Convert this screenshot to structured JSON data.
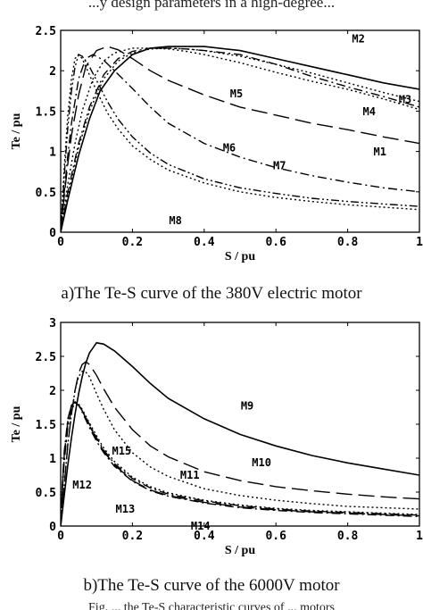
{
  "header_text": "...y design parameters in a high-degree...",
  "footer_text": "Fig. ... the Te-S characteristic curves of ... motors",
  "chart_data": [
    {
      "type": "line",
      "caption": "a)The Te-S curve of the 380V electric motor",
      "xlabel": "S / pu",
      "ylabel": "Te / pu",
      "xlim": [
        0,
        1
      ],
      "ylim": [
        0,
        2.5
      ],
      "xticks": [
        "0",
        "0.2",
        "0.4",
        "0.6",
        "0.8",
        "1"
      ],
      "yticks": [
        "0",
        "0.5",
        "1",
        "1.5",
        "2",
        "2.5"
      ],
      "grid": false,
      "series": [
        {
          "name": "M1",
          "dash": "long",
          "x": [
            0,
            0.01,
            0.02,
            0.03,
            0.05,
            0.07,
            0.1,
            0.13,
            0.16,
            0.2,
            0.25,
            0.3,
            0.4,
            0.5,
            0.6,
            0.7,
            0.8,
            0.9,
            1.0
          ],
          "y": [
            0,
            0.45,
            0.85,
            1.2,
            1.7,
            2.05,
            2.25,
            2.3,
            2.26,
            2.15,
            2.0,
            1.88,
            1.7,
            1.55,
            1.45,
            1.35,
            1.27,
            1.18,
            1.1
          ]
        },
        {
          "name": "M2",
          "dash": "solid",
          "x": [
            0,
            0.02,
            0.05,
            0.08,
            0.11,
            0.15,
            0.2,
            0.25,
            0.3,
            0.35,
            0.4,
            0.5,
            0.6,
            0.7,
            0.8,
            0.9,
            1.0
          ],
          "y": [
            0,
            0.4,
            0.95,
            1.4,
            1.75,
            2.0,
            2.2,
            2.28,
            2.3,
            2.3,
            2.3,
            2.25,
            2.15,
            2.05,
            1.95,
            1.85,
            1.77
          ]
        },
        {
          "name": "M3",
          "dash": "dot",
          "x": [
            0,
            0.02,
            0.05,
            0.08,
            0.12,
            0.16,
            0.2,
            0.25,
            0.3,
            0.35,
            0.4,
            0.5,
            0.6,
            0.7,
            0.8,
            0.9,
            1.0
          ],
          "y": [
            0,
            0.45,
            1.05,
            1.5,
            1.9,
            2.12,
            2.22,
            2.27,
            2.28,
            2.27,
            2.25,
            2.18,
            2.08,
            1.97,
            1.85,
            1.73,
            1.62
          ]
        },
        {
          "name": "M4",
          "dash": "dashdot",
          "x": [
            0,
            0.02,
            0.05,
            0.08,
            0.12,
            0.16,
            0.2,
            0.25,
            0.3,
            0.35,
            0.4,
            0.5,
            0.6,
            0.7,
            0.8,
            0.9,
            1.0
          ],
          "y": [
            0,
            0.5,
            1.1,
            1.55,
            1.95,
            2.15,
            2.24,
            2.28,
            2.28,
            2.27,
            2.25,
            2.2,
            2.08,
            1.93,
            1.8,
            1.68,
            1.55
          ]
        },
        {
          "name": "M5",
          "dash": "dot",
          "x": [
            0,
            0.02,
            0.04,
            0.06,
            0.09,
            0.12,
            0.15,
            0.2,
            0.25,
            0.3,
            0.35,
            0.4,
            0.5,
            0.6,
            0.7,
            0.8,
            0.9,
            1.0
          ],
          "y": [
            0,
            0.6,
            1.1,
            1.5,
            1.9,
            2.12,
            2.22,
            2.28,
            2.28,
            2.27,
            2.24,
            2.2,
            2.1,
            1.98,
            1.87,
            1.77,
            1.65,
            1.52
          ]
        },
        {
          "name": "M6",
          "dash": "dashdot",
          "x": [
            0,
            0.01,
            0.02,
            0.03,
            0.05,
            0.07,
            0.09,
            0.12,
            0.15,
            0.2,
            0.25,
            0.3,
            0.4,
            0.5,
            0.6,
            0.7,
            0.8,
            0.9,
            1.0
          ],
          "y": [
            0,
            0.5,
            0.95,
            1.35,
            1.9,
            2.15,
            2.2,
            2.13,
            2.0,
            1.78,
            1.55,
            1.35,
            1.1,
            0.93,
            0.8,
            0.7,
            0.62,
            0.55,
            0.5
          ]
        },
        {
          "name": "M7",
          "dash": "dashdotdot",
          "x": [
            0,
            0.01,
            0.02,
            0.03,
            0.04,
            0.05,
            0.06,
            0.08,
            0.1,
            0.13,
            0.16,
            0.2,
            0.25,
            0.3,
            0.4,
            0.5,
            0.6,
            0.7,
            0.8,
            0.9,
            1.0
          ],
          "y": [
            0,
            0.7,
            1.3,
            1.75,
            2.05,
            2.2,
            2.18,
            2.05,
            1.88,
            1.62,
            1.4,
            1.18,
            0.98,
            0.84,
            0.66,
            0.55,
            0.48,
            0.42,
            0.38,
            0.35,
            0.32
          ]
        },
        {
          "name": "M8",
          "dash": "dot",
          "x": [
            0,
            0.01,
            0.02,
            0.03,
            0.04,
            0.05,
            0.06,
            0.08,
            0.1,
            0.13,
            0.16,
            0.2,
            0.25,
            0.3,
            0.4,
            0.5,
            0.6,
            0.7,
            0.8,
            0.9,
            1.0
          ],
          "y": [
            0,
            0.8,
            1.45,
            1.9,
            2.15,
            2.2,
            2.15,
            1.95,
            1.75,
            1.48,
            1.28,
            1.07,
            0.9,
            0.77,
            0.61,
            0.5,
            0.43,
            0.38,
            0.34,
            0.31,
            0.28
          ]
        }
      ],
      "labels": [
        {
          "text": "M2",
          "x": 0.83,
          "y": 2.35
        },
        {
          "text": "M5",
          "x": 0.49,
          "y": 1.67
        },
        {
          "text": "M3",
          "x": 0.96,
          "y": 1.6
        },
        {
          "text": "M4",
          "x": 0.86,
          "y": 1.45
        },
        {
          "text": "M6",
          "x": 0.47,
          "y": 1.0
        },
        {
          "text": "M1",
          "x": 0.89,
          "y": 0.95
        },
        {
          "text": "M7",
          "x": 0.61,
          "y": 0.78
        },
        {
          "text": "M8",
          "x": 0.32,
          "y": 0.1
        }
      ]
    },
    {
      "type": "line",
      "caption": "b)The Te-S curve of the 6000V motor",
      "xlabel": "S / pu",
      "ylabel": "Te / pu",
      "xlim": [
        0,
        1
      ],
      "ylim": [
        0,
        3
      ],
      "xticks": [
        "0",
        "0.2",
        "0.4",
        "0.6",
        "0.8",
        "1"
      ],
      "yticks": [
        "0",
        "0.5",
        "1",
        "1.5",
        "2",
        "2.5",
        "3"
      ],
      "grid": false,
      "series": [
        {
          "name": "M9",
          "dash": "solid",
          "x": [
            0,
            0.01,
            0.02,
            0.03,
            0.04,
            0.05,
            0.06,
            0.07,
            0.08,
            0.1,
            0.12,
            0.15,
            0.2,
            0.25,
            0.3,
            0.4,
            0.5,
            0.6,
            0.7,
            0.8,
            0.9,
            1.0
          ],
          "y": [
            0,
            0.45,
            0.9,
            1.3,
            1.65,
            1.95,
            2.2,
            2.4,
            2.55,
            2.7,
            2.68,
            2.58,
            2.35,
            2.1,
            1.88,
            1.58,
            1.35,
            1.18,
            1.04,
            0.93,
            0.84,
            0.75
          ]
        },
        {
          "name": "M10",
          "dash": "long",
          "x": [
            0,
            0.01,
            0.02,
            0.03,
            0.04,
            0.05,
            0.06,
            0.07,
            0.08,
            0.1,
            0.12,
            0.15,
            0.2,
            0.25,
            0.3,
            0.4,
            0.5,
            0.6,
            0.7,
            0.8,
            0.9,
            1.0
          ],
          "y": [
            0,
            0.6,
            1.2,
            1.65,
            2.0,
            2.25,
            2.38,
            2.42,
            2.38,
            2.22,
            2.02,
            1.75,
            1.42,
            1.18,
            1.02,
            0.8,
            0.67,
            0.58,
            0.52,
            0.47,
            0.43,
            0.4
          ]
        },
        {
          "name": "M11",
          "dash": "dot",
          "x": [
            0,
            0.01,
            0.02,
            0.03,
            0.04,
            0.05,
            0.06,
            0.07,
            0.08,
            0.1,
            0.12,
            0.15,
            0.2,
            0.25,
            0.3,
            0.4,
            0.5,
            0.6,
            0.7,
            0.8,
            0.9,
            1.0
          ],
          "y": [
            0,
            0.6,
            1.2,
            1.65,
            2.0,
            2.2,
            2.28,
            2.27,
            2.2,
            1.95,
            1.72,
            1.42,
            1.08,
            0.87,
            0.73,
            0.55,
            0.45,
            0.38,
            0.33,
            0.29,
            0.27,
            0.25
          ]
        },
        {
          "name": "M12",
          "dash": "long",
          "x": [
            0,
            0.005,
            0.01,
            0.02,
            0.03,
            0.04,
            0.05,
            0.06,
            0.08,
            0.1,
            0.12,
            0.15,
            0.2,
            0.25,
            0.3,
            0.4,
            0.5,
            0.6,
            0.7,
            0.8,
            0.9,
            1.0
          ],
          "y": [
            0,
            0.6,
            1.05,
            1.55,
            1.78,
            1.83,
            1.8,
            1.7,
            1.48,
            1.28,
            1.1,
            0.9,
            0.67,
            0.53,
            0.45,
            0.35,
            0.28,
            0.24,
            0.21,
            0.19,
            0.17,
            0.15
          ]
        },
        {
          "name": "M13",
          "dash": "dashdot",
          "x": [
            0,
            0.005,
            0.01,
            0.02,
            0.03,
            0.04,
            0.05,
            0.06,
            0.08,
            0.1,
            0.12,
            0.15,
            0.2,
            0.25,
            0.3,
            0.4,
            0.5,
            0.6,
            0.7,
            0.8,
            0.9,
            1.0
          ],
          "y": [
            0,
            0.65,
            1.1,
            1.58,
            1.78,
            1.82,
            1.78,
            1.68,
            1.45,
            1.25,
            1.08,
            0.88,
            0.66,
            0.52,
            0.44,
            0.34,
            0.27,
            0.23,
            0.2,
            0.18,
            0.16,
            0.14
          ]
        },
        {
          "name": "M14",
          "dash": "dashdot",
          "x": [
            0,
            0.005,
            0.01,
            0.02,
            0.03,
            0.04,
            0.05,
            0.06,
            0.08,
            0.1,
            0.12,
            0.15,
            0.2,
            0.25,
            0.3,
            0.4,
            0.5,
            0.6,
            0.7,
            0.8,
            0.9,
            1.0
          ],
          "y": [
            0,
            0.55,
            0.95,
            1.45,
            1.72,
            1.8,
            1.78,
            1.7,
            1.5,
            1.3,
            1.12,
            0.92,
            0.7,
            0.56,
            0.47,
            0.37,
            0.3,
            0.25,
            0.22,
            0.2,
            0.18,
            0.16
          ]
        },
        {
          "name": "M15",
          "dash": "dot",
          "x": [
            0,
            0.005,
            0.01,
            0.02,
            0.03,
            0.04,
            0.05,
            0.06,
            0.08,
            0.1,
            0.12,
            0.15,
            0.2,
            0.25,
            0.3,
            0.4,
            0.5,
            0.6,
            0.7,
            0.8,
            0.9,
            1.0
          ],
          "y": [
            0,
            0.6,
            1.0,
            1.5,
            1.75,
            1.82,
            1.8,
            1.72,
            1.52,
            1.33,
            1.15,
            0.95,
            0.72,
            0.58,
            0.49,
            0.38,
            0.31,
            0.26,
            0.23,
            0.21,
            0.19,
            0.17
          ]
        }
      ],
      "labels": [
        {
          "text": "M9",
          "x": 0.52,
          "y": 1.72
        },
        {
          "text": "M15",
          "x": 0.17,
          "y": 1.05
        },
        {
          "text": "M10",
          "x": 0.56,
          "y": 0.88
        },
        {
          "text": "M11",
          "x": 0.36,
          "y": 0.7
        },
        {
          "text": "M12",
          "x": 0.06,
          "y": 0.55
        },
        {
          "text": "M13",
          "x": 0.18,
          "y": 0.2
        },
        {
          "text": "M14",
          "x": 0.39,
          "y": -0.05
        }
      ]
    }
  ]
}
